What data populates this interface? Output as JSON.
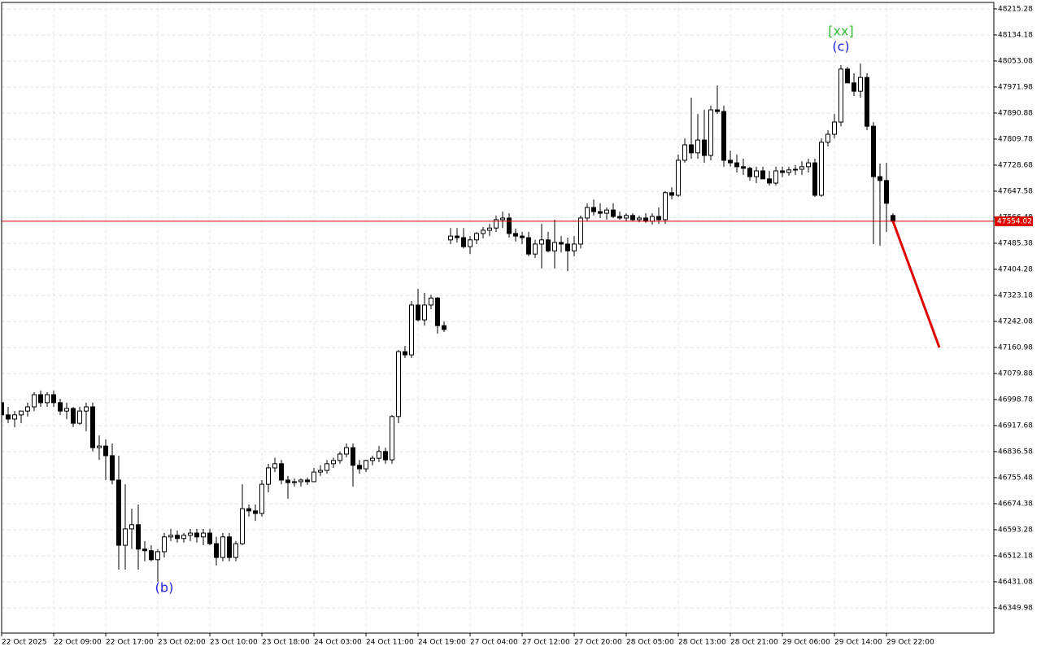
{
  "chart_data": {
    "type": "candlestick",
    "categories": [
      "22 Oct 2025",
      null,
      null,
      null,
      null,
      null,
      null,
      null,
      "22 Oct 09:00",
      null,
      null,
      null,
      null,
      null,
      null,
      null,
      "22 Oct 17:00",
      null,
      null,
      null,
      null,
      null,
      null,
      null,
      "23 Oct 02:00",
      null,
      null,
      null,
      null,
      null,
      null,
      null,
      "23 Oct 10:00",
      null,
      null,
      null,
      null,
      null,
      null,
      null,
      "23 Oct 18:00",
      null,
      null,
      null,
      null,
      null,
      null,
      null,
      "24 Oct 03:00",
      null,
      null,
      null,
      null,
      null,
      null,
      null,
      "24 Oct 11:00",
      null,
      null,
      null,
      null,
      null,
      null,
      null,
      "24 Oct 19:00",
      null,
      null,
      null,
      null,
      null,
      null,
      null,
      "27 Oct 04:00",
      null,
      null,
      null,
      null,
      null,
      null,
      null,
      "27 Oct 12:00",
      null,
      null,
      null,
      null,
      null,
      null,
      null,
      "27 Oct 20:00",
      null,
      null,
      null,
      null,
      null,
      null,
      null,
      "28 Oct 05:00",
      null,
      null,
      null,
      null,
      null,
      null,
      null,
      "28 Oct 13:00",
      null,
      null,
      null,
      null,
      null,
      null,
      null,
      "28 Oct 21:00",
      null,
      null,
      null,
      null,
      null,
      null,
      null,
      "29 Oct 06:00",
      null,
      null,
      null,
      null,
      null,
      null,
      null,
      "29 Oct 14:00",
      null,
      null,
      null,
      null,
      null,
      null,
      null,
      "29 Oct 22:00",
      null
    ],
    "open": [
      46989,
      46951,
      46938,
      46951,
      46963,
      46976,
      47014,
      46989,
      47014,
      46989,
      46963,
      46971,
      46925,
      46963,
      46976,
      46849,
      46854,
      46824,
      46748,
      46545,
      46596,
      46609,
      46533,
      46528,
      46500,
      46525,
      46571,
      46576,
      46566,
      46576,
      46583,
      46571,
      46583,
      46550,
      46507,
      46571,
      46507,
      46550,
      46659,
      46652,
      46644,
      46735,
      46786,
      46799,
      46748,
      46740,
      46743,
      46748,
      46743,
      46773,
      46778,
      46799,
      46809,
      46829,
      46849,
      46794,
      46783,
      46809,
      46816,
      46837,
      46811,
      46946,
      47148,
      47138,
      47293,
      47247,
      47293,
      47315,
      47229,
      47496,
      47508,
      47503,
      47475,
      47496,
      47516,
      47526,
      47533,
      47559,
      47564,
      47516,
      47508,
      47503,
      47452,
      47483,
      47496,
      47462,
      47488,
      47483,
      47462,
      47483,
      47564,
      47597,
      47584,
      47579,
      47589,
      47569,
      47564,
      47572,
      47559,
      47564,
      47554,
      47569,
      47559,
      47643,
      47635,
      47744,
      47792,
      47767,
      47807,
      47759,
      47901,
      47896,
      47744,
      47736,
      47724,
      47719,
      47693,
      47711,
      47686,
      47673,
      47711,
      47706,
      47714,
      47716,
      47724,
      47736,
      47635,
      47800,
      47825,
      47863,
      48028,
      47985,
      47959,
      48002,
      47850,
      47693,
      47681,
      47572
    ],
    "high": [
      46994,
      46976,
      46963,
      46963,
      46989,
      47022,
      47027,
      47022,
      47027,
      47001,
      46989,
      46976,
      46976,
      46989,
      46989,
      46887,
      46875,
      46862,
      46824,
      46735,
      46659,
      46672,
      46558,
      46545,
      46533,
      46583,
      46596,
      46591,
      46583,
      46596,
      46596,
      46596,
      46596,
      46571,
      46583,
      46583,
      46558,
      46735,
      46672,
      46672,
      46748,
      46799,
      46818,
      46811,
      46761,
      46753,
      46753,
      46756,
      46786,
      46794,
      46811,
      46818,
      46837,
      46862,
      46862,
      46811,
      46811,
      46824,
      46854,
      46849,
      46951,
      47153,
      47166,
      47305,
      47343,
      47331,
      47325,
      47318,
      47242,
      47533,
      47533,
      47533,
      47508,
      47521,
      47536,
      47546,
      47572,
      47584,
      47579,
      47531,
      47521,
      47521,
      47496,
      47546,
      47521,
      47559,
      47508,
      47503,
      47508,
      47572,
      47610,
      47622,
      47610,
      47597,
      47610,
      47584,
      47579,
      47579,
      47572,
      47579,
      47579,
      47597,
      47648,
      47660,
      47762,
      47812,
      47939,
      47888,
      47901,
      47914,
      47977,
      47914,
      47774,
      47762,
      47749,
      47724,
      47724,
      47724,
      47711,
      47724,
      47724,
      47724,
      47729,
      47741,
      47749,
      47749,
      47812,
      47838,
      47888,
      48040,
      48035,
      48015,
      48045,
      48015,
      47863,
      47734,
      47736,
      47579
    ],
    "low": [
      46938,
      46925,
      46913,
      46925,
      46946,
      46963,
      46976,
      46976,
      46976,
      46951,
      46938,
      46913,
      46920,
      46900,
      46837,
      46811,
      46748,
      46735,
      46469,
      46469,
      46533,
      46469,
      46495,
      46495,
      46431,
      46507,
      46558,
      46553,
      46553,
      46558,
      46553,
      46545,
      46545,
      46482,
      46495,
      46495,
      46495,
      46545,
      46634,
      46621,
      46634,
      46710,
      46773,
      46735,
      46690,
      46728,
      46728,
      46733,
      46743,
      46761,
      46768,
      46786,
      46799,
      46819,
      46728,
      46768,
      46773,
      46794,
      46804,
      46799,
      46799,
      46925,
      47128,
      47128,
      47242,
      47229,
      47280,
      47204,
      47209,
      47483,
      47488,
      47470,
      47452,
      47483,
      47501,
      47508,
      47521,
      47533,
      47503,
      47491,
      47483,
      47445,
      47440,
      47407,
      47457,
      47407,
      47457,
      47399,
      47445,
      47470,
      47554,
      47572,
      47564,
      47559,
      47564,
      47559,
      47554,
      47554,
      47551,
      47549,
      47544,
      47546,
      47546,
      47622,
      47630,
      47736,
      47749,
      47749,
      47736,
      47744,
      47888,
      47724,
      47724,
      47706,
      47698,
      47681,
      47673,
      47686,
      47665,
      47665,
      47691,
      47696,
      47698,
      47698,
      47706,
      47630,
      47630,
      47787,
      47812,
      47850,
      47985,
      47944,
      47939,
      47838,
      47483,
      47478,
      47521,
      47554
    ],
    "close": [
      46951,
      46938,
      46951,
      46963,
      46976,
      47014,
      46989,
      47014,
      46989,
      46963,
      46971,
      46925,
      46963,
      46976,
      46849,
      46854,
      46824,
      46748,
      46545,
      46596,
      46609,
      46533,
      46528,
      46500,
      46525,
      46571,
      46576,
      46566,
      46576,
      46583,
      46571,
      46583,
      46550,
      46507,
      46571,
      46507,
      46550,
      46659,
      46652,
      46644,
      46735,
      46786,
      46799,
      46748,
      46740,
      46743,
      46748,
      46743,
      46773,
      46778,
      46799,
      46809,
      46829,
      46849,
      46794,
      46783,
      46809,
      46816,
      46837,
      46811,
      46946,
      47148,
      47138,
      47293,
      47247,
      47293,
      47315,
      47229,
      47217,
      47508,
      47503,
      47475,
      47496,
      47516,
      47526,
      47533,
      47559,
      47564,
      47516,
      47508,
      47503,
      47452,
      47483,
      47496,
      47462,
      47488,
      47483,
      47462,
      47483,
      47564,
      47597,
      47584,
      47579,
      47589,
      47569,
      47564,
      47572,
      47559,
      47564,
      47554,
      47569,
      47559,
      47643,
      47635,
      47744,
      47792,
      47767,
      47807,
      47759,
      47901,
      47896,
      47744,
      47736,
      47724,
      47719,
      47693,
      47711,
      47686,
      47673,
      47711,
      47706,
      47714,
      47716,
      47724,
      47736,
      47635,
      47800,
      47825,
      47863,
      48028,
      47985,
      47959,
      48002,
      47850,
      47693,
      47681,
      47610,
      47554.02
    ],
    "up_color": "#ffffff",
    "down_color": "#000000",
    "ylim": [
      46271.42,
      48235.55
    ],
    "yticks": [
      46349.98,
      46431.08,
      46512.18,
      46593.28,
      46674.38,
      46755.48,
      46836.58,
      46917.68,
      46998.78,
      47079.88,
      47160.98,
      47242.08,
      47323.18,
      47404.28,
      47485.38,
      47566.48,
      47647.58,
      47728.68,
      47809.78,
      47890.88,
      47971.98,
      48053.08,
      48134.18,
      48215.28
    ],
    "grid": true,
    "current_price": 47554.02,
    "current_price_color": "#e00000",
    "forecast": {
      "color": "#e00000",
      "values": [
        47554.02,
        47161
      ]
    },
    "annotations": [
      {
        "text": "(b)",
        "color": "#2222dd"
      },
      {
        "text": "[xx]",
        "color": "#33bb33"
      },
      {
        "text": "(c)",
        "color": "#2222dd"
      }
    ]
  }
}
